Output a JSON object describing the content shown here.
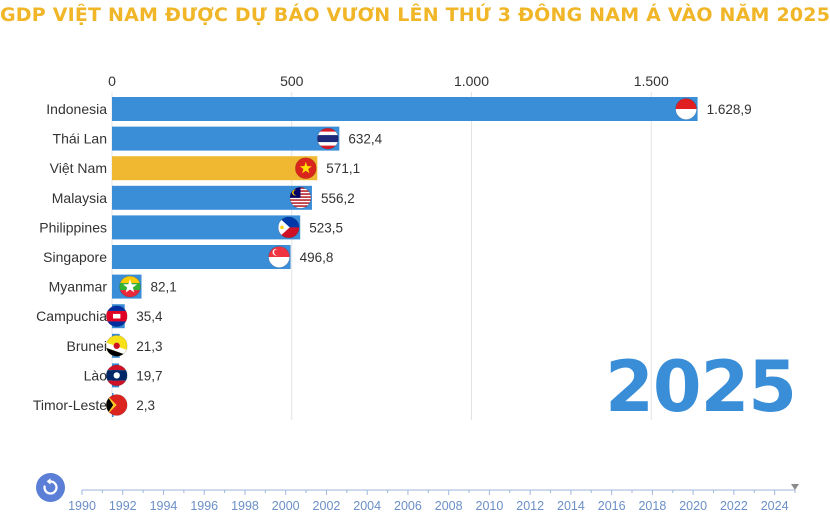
{
  "title": "GDP VIỆT NAM ĐƯỢC DỰ BÁO VƯƠN LÊN THỨ 3 ĐÔNG NAM Á VÀO NĂM 2025",
  "year_display": "2025",
  "colors": {
    "bar": "#3a8ed8",
    "highlight": "#f0b730",
    "year": "#3a8ed8",
    "title": "#f0b628",
    "timeline": "#6b8fc7"
  },
  "chart_data": {
    "type": "bar",
    "orientation": "horizontal",
    "title": "GDP VIỆT NAM ĐƯỢC DỰ BÁO VƯƠN LÊN THỨ 3 ĐÔNG NAM Á VÀO NĂM 2025",
    "categories": [
      "Indonesia",
      "Thái Lan",
      "Việt Nam",
      "Malaysia",
      "Philippines",
      "Singapore",
      "Myanmar",
      "Campuchia",
      "Brunei",
      "Lào",
      "Timor-Leste"
    ],
    "values": [
      1628.9,
      632.4,
      571.1,
      556.2,
      523.5,
      496.8,
      82.1,
      35.4,
      21.3,
      19.7,
      2.3
    ],
    "value_labels": [
      "1.628,9",
      "632,4",
      "571,1",
      "556,2",
      "523,5",
      "496,8",
      "82,1",
      "35,4",
      "21,3",
      "19,7",
      "2,3"
    ],
    "highlight": "Việt Nam",
    "flags": [
      "indonesia-flag",
      "thailand-flag",
      "vietnam-flag",
      "malaysia-flag",
      "philippines-flag",
      "singapore-flag",
      "myanmar-flag",
      "cambodia-flag",
      "brunei-flag",
      "laos-flag",
      "timor-leste-flag"
    ],
    "xlim": [
      0,
      1800
    ],
    "xticks": [
      0,
      500,
      1000,
      1500
    ],
    "xtick_labels": [
      "0",
      "500",
      "1.000",
      "1.500"
    ],
    "grid": true,
    "axis_position": "top"
  },
  "timeline": {
    "years": [
      "1990",
      "1992",
      "1994",
      "1996",
      "1998",
      "2000",
      "2002",
      "2004",
      "2006",
      "2008",
      "2010",
      "2012",
      "2014",
      "2016",
      "2018",
      "2020",
      "2022",
      "2024"
    ],
    "start": 1990,
    "end": 2025,
    "current": 2025
  },
  "controls": {
    "replay_icon": "replay-icon"
  }
}
